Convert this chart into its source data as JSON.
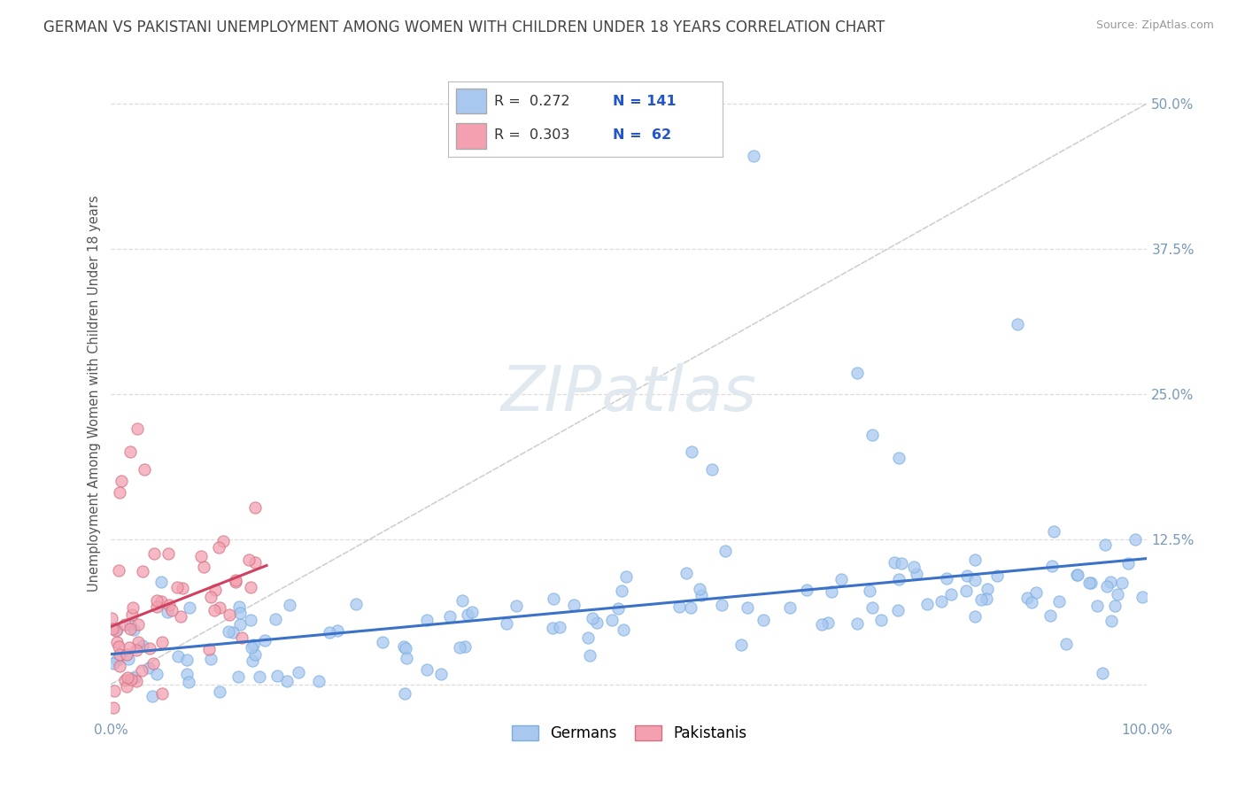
{
  "title": "GERMAN VS PAKISTANI UNEMPLOYMENT AMONG WOMEN WITH CHILDREN UNDER 18 YEARS CORRELATION CHART",
  "source": "Source: ZipAtlas.com",
  "ylabel": "Unemployment Among Women with Children Under 18 years",
  "xlim": [
    0,
    1.0
  ],
  "ylim": [
    -0.03,
    0.53
  ],
  "yticks": [
    0.0,
    0.125,
    0.25,
    0.375,
    0.5
  ],
  "ytick_labels": [
    "",
    "12.5%",
    "25.0%",
    "37.5%",
    "50.0%"
  ],
  "xticks": [
    0.0,
    1.0
  ],
  "xtick_labels": [
    "0.0%",
    "100.0%"
  ],
  "german_R": 0.272,
  "german_N": 141,
  "pakistani_R": 0.303,
  "pakistani_N": 62,
  "german_color": "#a8c8f0",
  "german_edge_color": "#7aaee0",
  "pakistani_color": "#f4a0b0",
  "pakistani_edge_color": "#d07080",
  "german_line_color": "#3b72c8",
  "pakistani_line_color": "#d04060",
  "diagonal_color": "#d0d0d0",
  "background_color": "#ffffff",
  "title_color": "#444444",
  "watermark_color": "#e0e8f0",
  "label_color": "#555555",
  "tick_color": "#7799bb",
  "grid_color": "#dddddd",
  "legend_german": "Germans",
  "legend_pakistani": "Pakistanis",
  "title_fontsize": 12,
  "axis_label_fontsize": 10.5,
  "tick_fontsize": 11,
  "legend_fontsize": 12,
  "source_fontsize": 9
}
